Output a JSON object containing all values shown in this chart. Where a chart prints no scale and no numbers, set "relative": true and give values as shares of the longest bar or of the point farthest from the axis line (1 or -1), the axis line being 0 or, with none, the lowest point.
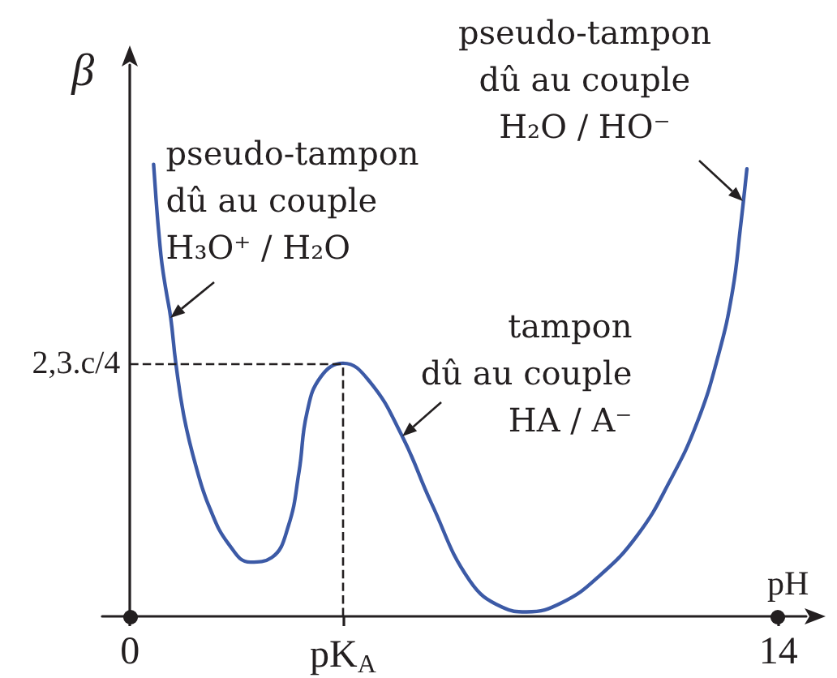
{
  "chart_data": {
    "type": "line",
    "xlabel": "pH",
    "ylabel": "β",
    "relative": true,
    "marker": "none",
    "line_style": "solid",
    "color": "#3c5aa6",
    "xlim": [
      -0.6,
      14.6
    ],
    "xticks": [
      0,
      {
        "value": 4.6,
        "label": "pK$_{A}$"
      },
      14
    ],
    "x": [
      0.51,
      0.58,
      0.63,
      0.69,
      0.78,
      0.88,
      0.99,
      1.17,
      1.43,
      1.72,
      2.13,
      2.6,
      3.06,
      3.42,
      3.65,
      3.82,
      4.12,
      4.6,
      5.17,
      5.87,
      6.51,
      7.33,
      8.04,
      8.56,
      9.32,
      10.14,
      10.96,
      11.66,
      12.25,
      12.71,
      13.01,
      13.18,
      13.32
    ],
    "values": [
      1.0,
      0.9,
      0.84,
      0.78,
      0.72,
      0.66,
      0.56,
      0.44,
      0.33,
      0.24,
      0.16,
      0.12,
      0.13,
      0.2,
      0.32,
      0.45,
      0.53,
      0.56,
      0.52,
      0.4,
      0.25,
      0.08,
      0.02,
      0.01,
      0.03,
      0.09,
      0.18,
      0.3,
      0.43,
      0.58,
      0.72,
      0.86,
      0.99
    ],
    "ref_lines": [
      {
        "axis": "y",
        "value": 0.56,
        "label": "2,3.c/4",
        "line_style": "dashed",
        "color": "#231f20"
      },
      {
        "axis": "x",
        "value": 4.6,
        "line_style": "dashed",
        "color": "#231f20"
      }
    ],
    "annotations": [
      {
        "text": "pseudo-tampon\ndû au couple\nH₃O⁺ / H₂O",
        "x": 0.88,
        "y": 0.66
      },
      {
        "text": "tampon\ndû au couple\nHA / A⁻",
        "x": 5.87,
        "y": 0.4
      },
      {
        "text": "pseudo-tampon\ndû au couple\nH₂O / HO⁻",
        "x": 13.25,
        "y": 0.92
      }
    ]
  }
}
